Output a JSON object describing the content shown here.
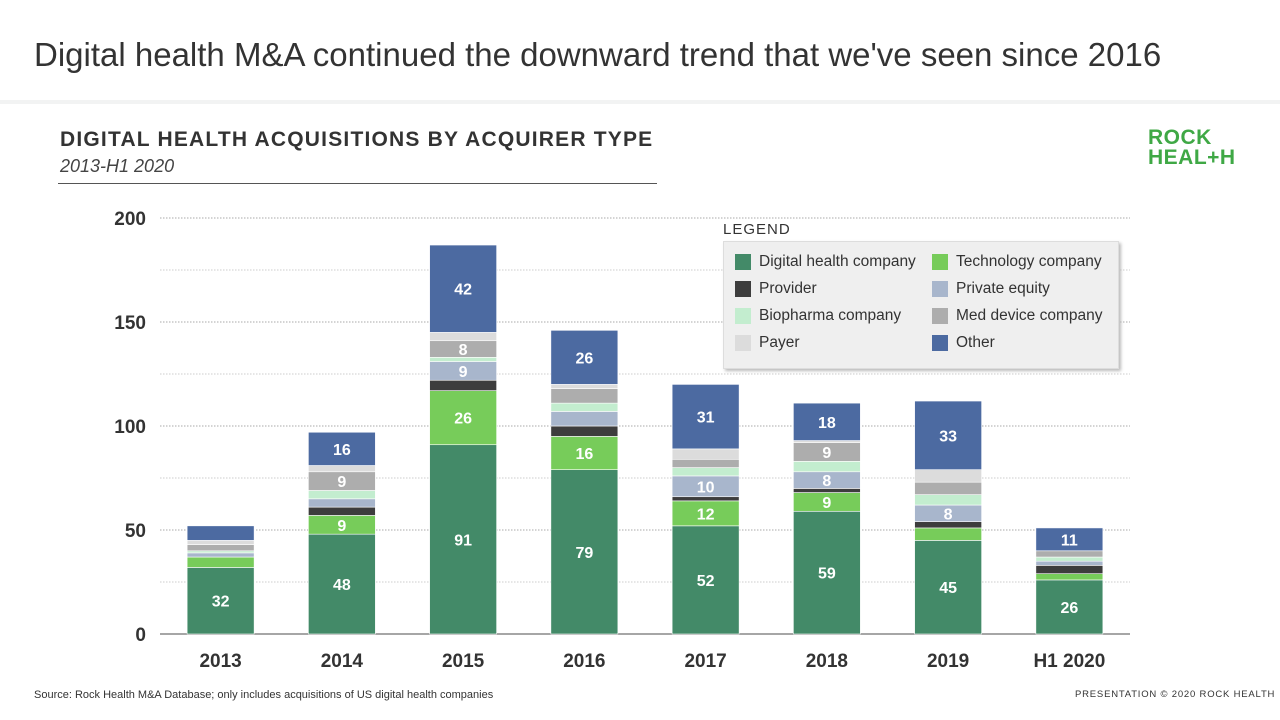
{
  "header": {
    "title": "Digital health M&A continued the downward trend that we've seen since 2016"
  },
  "logo": {
    "line1": "ROCK",
    "line2": "HEAL+H"
  },
  "footer": {
    "source": "Source: Rock Health M&A Database; only includes acquisitions of US digital health companies",
    "copyright": "PRESENTATION © 2020 ROCK HEALTH"
  },
  "chart_data": {
    "type": "stacked-bar",
    "title": "DIGITAL HEALTH ACQUISITIONS BY ACQUIRER TYPE",
    "subtitle": "2013-H1 2020",
    "categories": [
      "2013",
      "2014",
      "2015",
      "2016",
      "2017",
      "2018",
      "2019",
      "H1 2020"
    ],
    "ylim": [
      0,
      200
    ],
    "yticks": [
      0,
      50,
      100,
      150,
      200
    ],
    "grid": true,
    "legend_title": "LEGEND",
    "legend_placement": "top-right",
    "series": [
      {
        "name": "Digital health company",
        "color": "#438a68",
        "values": [
          32,
          48,
          91,
          79,
          52,
          59,
          45,
          26
        ]
      },
      {
        "name": "Technology company",
        "color": "#77cc5a",
        "values": [
          5,
          9,
          26,
          16,
          12,
          9,
          6,
          3
        ]
      },
      {
        "name": "Provider",
        "color": "#3d3d3d",
        "values": [
          0,
          4,
          5,
          5,
          2,
          2,
          3,
          4
        ]
      },
      {
        "name": "Private equity",
        "color": "#a8b6cc",
        "values": [
          2,
          4,
          9,
          7,
          10,
          8,
          8,
          2
        ]
      },
      {
        "name": "Biopharma company",
        "color": "#c3edcf",
        "values": [
          1,
          4,
          2,
          4,
          4,
          5,
          5,
          2
        ]
      },
      {
        "name": "Med device company",
        "color": "#adadad",
        "values": [
          3,
          9,
          8,
          7,
          4,
          9,
          6,
          3
        ]
      },
      {
        "name": "Payer",
        "color": "#dcdcdc",
        "values": [
          2,
          3,
          4,
          2,
          5,
          1,
          6,
          0
        ]
      },
      {
        "name": "Other",
        "color": "#4c6aa1",
        "values": [
          7,
          16,
          42,
          26,
          31,
          18,
          33,
          11
        ]
      }
    ]
  }
}
